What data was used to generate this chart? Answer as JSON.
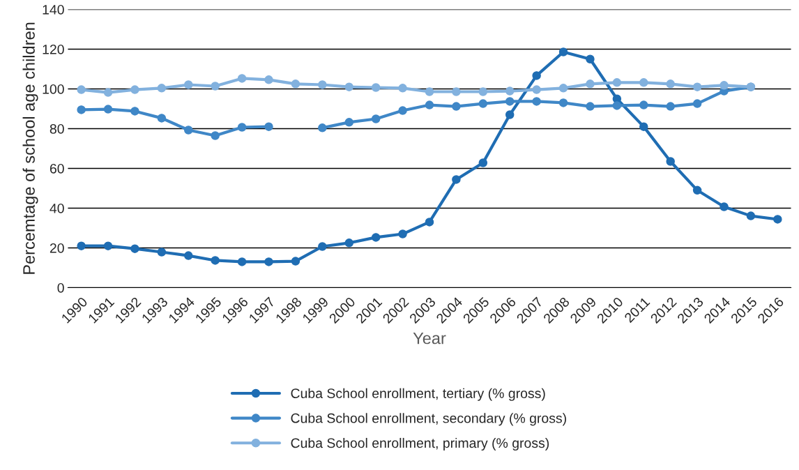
{
  "chart_data": {
    "type": "line",
    "xlabel": "Year",
    "ylabel": "Percemtage of school age children",
    "categories": [
      "1990",
      "1991",
      "1992",
      "1993",
      "1994",
      "1995",
      "1996",
      "1997",
      "1998",
      "1999",
      "2000",
      "2001",
      "2002",
      "2003",
      "2004",
      "2005",
      "2006",
      "2007",
      "2008",
      "2009",
      "2010",
      "2011",
      "2012",
      "2013",
      "2014",
      "2015",
      "2016"
    ],
    "series": [
      {
        "name": "Cuba School enrollment, tertiary (% gross)",
        "color": "#1f6db3",
        "values": [
          21.0,
          21.0,
          19.6,
          17.9,
          16.1,
          13.7,
          13.0,
          13.0,
          13.3,
          20.7,
          22.5,
          25.3,
          27.0,
          33.0,
          54.4,
          62.8,
          87.0,
          106.7,
          118.6,
          115.0,
          95.0,
          81.0,
          63.5,
          49.0,
          40.7,
          36.1,
          34.4
        ]
      },
      {
        "name": "Cuba School enrollment, secondary (% gross)",
        "color": "#3f87c7",
        "values": [
          89.5,
          89.8,
          88.8,
          85.3,
          79.3,
          76.5,
          80.7,
          81.0,
          null,
          80.4,
          83.2,
          84.9,
          89.1,
          91.9,
          91.2,
          92.6,
          93.7,
          93.7,
          93.0,
          91.2,
          91.6,
          91.9,
          91.2,
          92.6,
          98.9,
          101.0,
          null
        ]
      },
      {
        "name": "Cuba School enrollment, primary (% gross)",
        "color": "#82b1de",
        "values": [
          99.6,
          98.2,
          99.6,
          100.4,
          102.1,
          101.4,
          105.3,
          104.6,
          102.5,
          102.1,
          101.0,
          100.7,
          100.4,
          98.6,
          98.6,
          98.6,
          98.9,
          99.6,
          100.4,
          102.5,
          103.2,
          103.2,
          102.5,
          101.0,
          101.8,
          101.0,
          null
        ]
      }
    ],
    "ylim": [
      0,
      140
    ],
    "yticks": [
      0,
      20,
      40,
      60,
      80,
      100,
      120,
      140
    ],
    "grid": "y",
    "legend": "bottom",
    "marker": "circle",
    "line_style": "solid"
  }
}
